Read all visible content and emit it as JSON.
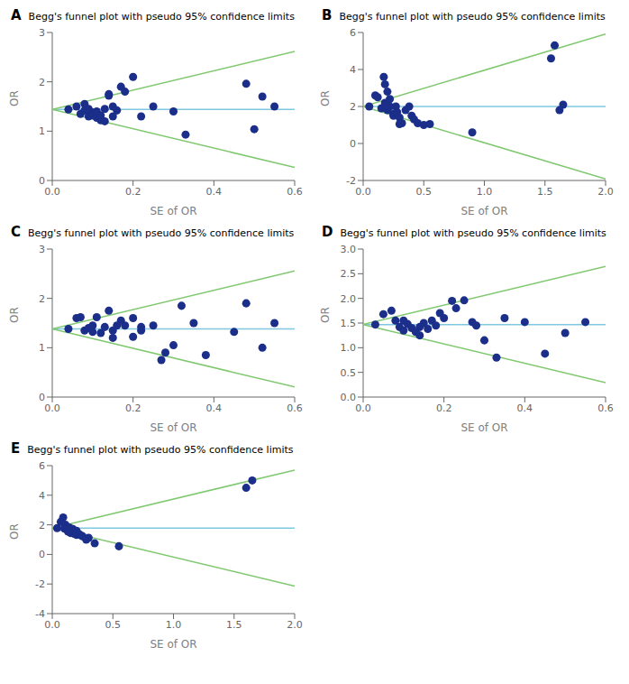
{
  "chart_data": [
    {
      "type": "scatter",
      "title": "Begg's funnel plot with pseudo 95% confidence limits",
      "annotations": [
        "A"
      ],
      "xlabel": "SE of OR",
      "ylabel": "OR",
      "xlim": [
        0,
        0.6
      ],
      "ylim": [
        0,
        3.0
      ],
      "xticks": [
        {
          "value": 0,
          "label": "0.0"
        },
        0.2,
        0.4,
        0.6
      ],
      "yticks": [
        0,
        1,
        2,
        3
      ],
      "series": [
        {
          "type": "line",
          "color": "#80c8e0",
          "x": [
            0,
            0.6
          ],
          "values": [
            1.44,
            1.44
          ]
        },
        {
          "type": "line",
          "color": "#80c870",
          "x": [
            0,
            0.6
          ],
          "values": [
            1.44,
            2.616
          ]
        },
        {
          "type": "line",
          "color": "#80c870",
          "x": [
            0,
            0.6
          ],
          "values": [
            1.44,
            0.264
          ]
        },
        {
          "type": "scatter",
          "color": "#1a2e8a",
          "x": [
            0.04,
            0.06,
            0.07,
            0.08,
            0.08,
            0.09,
            0.09,
            0.1,
            0.1,
            0.11,
            0.11,
            0.12,
            0.12,
            0.12,
            0.13,
            0.13,
            0.14,
            0.14,
            0.15,
            0.15,
            0.16,
            0.17,
            0.18,
            0.2,
            0.22,
            0.25,
            0.3,
            0.33,
            0.48,
            0.5,
            0.52,
            0.55
          ],
          "values": [
            1.44,
            1.5,
            1.35,
            1.42,
            1.55,
            1.3,
            1.45,
            1.38,
            1.32,
            1.27,
            1.4,
            1.22,
            1.25,
            1.32,
            1.2,
            1.45,
            1.75,
            1.72,
            1.3,
            1.5,
            1.42,
            1.9,
            1.8,
            2.1,
            1.3,
            1.5,
            1.4,
            0.93,
            1.96,
            1.04,
            1.7,
            1.5
          ]
        }
      ]
    },
    {
      "type": "scatter",
      "title": "Begg's funnel plot with pseudo 95% confidence limits",
      "annotations": [
        "B"
      ],
      "xlabel": "SE of OR",
      "ylabel": "OR",
      "xlim": [
        0,
        2.0
      ],
      "ylim": [
        -2,
        6
      ],
      "xticks": [
        {
          "value": 0,
          "label": "0.0"
        },
        0.5,
        {
          "value": 1,
          "label": "1.0"
        },
        1.5,
        {
          "value": 2,
          "label": "2.0"
        }
      ],
      "yticks": [
        -2,
        0,
        2,
        4,
        6
      ],
      "series": [
        {
          "type": "line",
          "color": "#80c8e0",
          "x": [
            0,
            2.0
          ],
          "values": [
            2.0,
            2.0
          ]
        },
        {
          "type": "line",
          "color": "#80c870",
          "x": [
            0,
            2.0
          ],
          "values": [
            2.0,
            5.92
          ]
        },
        {
          "type": "line",
          "color": "#80c870",
          "x": [
            0,
            2.0
          ],
          "values": [
            2.0,
            -1.92
          ]
        },
        {
          "type": "scatter",
          "color": "#1a2e8a",
          "x": [
            0.05,
            0.1,
            0.12,
            0.15,
            0.17,
            0.18,
            0.18,
            0.2,
            0.2,
            0.22,
            0.22,
            0.25,
            0.25,
            0.27,
            0.28,
            0.3,
            0.3,
            0.32,
            0.35,
            0.38,
            0.4,
            0.42,
            0.45,
            0.5,
            0.55,
            0.9,
            1.55,
            1.58,
            1.62,
            1.65
          ],
          "values": [
            2.0,
            2.6,
            2.5,
            1.9,
            3.6,
            3.2,
            2.2,
            1.8,
            2.8,
            2.4,
            2.0,
            1.6,
            1.5,
            2.0,
            1.7,
            1.4,
            1.05,
            1.1,
            1.8,
            2.0,
            1.5,
            1.3,
            1.1,
            1.0,
            1.05,
            0.6,
            4.6,
            5.3,
            1.8,
            2.1
          ]
        }
      ]
    },
    {
      "type": "scatter",
      "title": "Begg's funnel plot with pseudo 95% confidence limits",
      "annotations": [
        "C"
      ],
      "xlabel": "SE of OR",
      "ylabel": "OR",
      "xlim": [
        0,
        0.6
      ],
      "ylim": [
        0,
        3.0
      ],
      "xticks": [
        {
          "value": 0,
          "label": "0.0"
        },
        0.2,
        0.4,
        0.6
      ],
      "yticks": [
        0,
        1,
        2,
        3
      ],
      "series": [
        {
          "type": "line",
          "color": "#80c8e0",
          "x": [
            0,
            0.6
          ],
          "values": [
            1.38,
            1.38
          ]
        },
        {
          "type": "line",
          "color": "#80c870",
          "x": [
            0,
            0.6
          ],
          "values": [
            1.38,
            2.556
          ]
        },
        {
          "type": "line",
          "color": "#80c870",
          "x": [
            0,
            0.6
          ],
          "values": [
            1.38,
            0.204
          ]
        },
        {
          "type": "scatter",
          "color": "#1a2e8a",
          "x": [
            0.04,
            0.06,
            0.07,
            0.08,
            0.09,
            0.1,
            0.1,
            0.11,
            0.12,
            0.13,
            0.14,
            0.15,
            0.15,
            0.16,
            0.17,
            0.18,
            0.2,
            0.2,
            0.22,
            0.22,
            0.25,
            0.27,
            0.28,
            0.3,
            0.32,
            0.35,
            0.38,
            0.45,
            0.48,
            0.52,
            0.55
          ],
          "values": [
            1.38,
            1.6,
            1.62,
            1.35,
            1.4,
            1.32,
            1.45,
            1.62,
            1.3,
            1.42,
            1.75,
            1.35,
            1.2,
            1.45,
            1.55,
            1.45,
            1.6,
            1.22,
            1.35,
            1.42,
            1.45,
            0.75,
            0.9,
            1.05,
            1.85,
            1.5,
            0.85,
            1.32,
            1.9,
            1.0,
            1.5
          ]
        }
      ]
    },
    {
      "type": "scatter",
      "title": "Begg's funnel plot with pseudo 95% confidence limits",
      "annotations": [
        "D"
      ],
      "xlabel": "SE of OR",
      "ylabel": "OR",
      "xlim": [
        0,
        0.6
      ],
      "ylim": [
        0.0,
        3.0
      ],
      "xticks": [
        {
          "value": 0,
          "label": "0.0"
        },
        0.2,
        0.4,
        0.6
      ],
      "yticks": [
        {
          "value": 0,
          "label": "0.0"
        },
        0.5,
        {
          "value": 1,
          "label": "1.0"
        },
        1.5,
        {
          "value": 2,
          "label": "2.0"
        },
        2.5,
        {
          "value": 3,
          "label": "3.0"
        }
      ],
      "series": [
        {
          "type": "line",
          "color": "#80c8e0",
          "x": [
            0,
            0.6
          ],
          "values": [
            1.47,
            1.47
          ]
        },
        {
          "type": "line",
          "color": "#80c870",
          "x": [
            0,
            0.6
          ],
          "values": [
            1.47,
            2.646
          ]
        },
        {
          "type": "line",
          "color": "#80c870",
          "x": [
            0,
            0.6
          ],
          "values": [
            1.47,
            0.294
          ]
        },
        {
          "type": "scatter",
          "color": "#1a2e8a",
          "x": [
            0.03,
            0.05,
            0.07,
            0.08,
            0.09,
            0.1,
            0.1,
            0.11,
            0.12,
            0.13,
            0.14,
            0.14,
            0.15,
            0.16,
            0.17,
            0.18,
            0.19,
            0.2,
            0.22,
            0.23,
            0.25,
            0.27,
            0.28,
            0.3,
            0.33,
            0.35,
            0.4,
            0.45,
            0.5,
            0.55
          ],
          "values": [
            1.47,
            1.68,
            1.75,
            1.55,
            1.42,
            1.55,
            1.35,
            1.48,
            1.4,
            1.32,
            1.42,
            1.25,
            1.5,
            1.38,
            1.55,
            1.45,
            1.7,
            1.6,
            1.95,
            1.8,
            1.96,
            1.52,
            1.45,
            1.15,
            0.8,
            1.6,
            1.52,
            0.88,
            1.3,
            1.52
          ]
        }
      ]
    },
    {
      "type": "scatter",
      "title": "Begg's funnel plot with pseudo 95% confidence limits",
      "annotations": [
        "E"
      ],
      "xlabel": "SE of OR",
      "ylabel": "OR",
      "xlim": [
        0,
        2.0
      ],
      "ylim": [
        -4,
        6
      ],
      "xticks": [
        {
          "value": 0,
          "label": "0.0"
        },
        0.5,
        {
          "value": 1,
          "label": "1.0"
        },
        1.5,
        {
          "value": 2,
          "label": "2.0"
        }
      ],
      "yticks": [
        -4,
        -2,
        0,
        2,
        4,
        6
      ],
      "series": [
        {
          "type": "line",
          "color": "#80c8e0",
          "x": [
            0,
            2.0
          ],
          "values": [
            1.78,
            1.78
          ]
        },
        {
          "type": "line",
          "color": "#80c870",
          "x": [
            0,
            2.0
          ],
          "values": [
            1.78,
            5.7
          ]
        },
        {
          "type": "line",
          "color": "#80c870",
          "x": [
            0,
            2.0
          ],
          "values": [
            1.78,
            -2.14
          ]
        },
        {
          "type": "scatter",
          "color": "#1a2e8a",
          "x": [
            0.04,
            0.07,
            0.09,
            0.1,
            0.11,
            0.12,
            0.13,
            0.14,
            0.15,
            0.16,
            0.17,
            0.18,
            0.18,
            0.2,
            0.2,
            0.22,
            0.24,
            0.25,
            0.28,
            0.3,
            0.35,
            0.55,
            1.6,
            1.65
          ],
          "values": [
            1.78,
            2.2,
            2.5,
            1.75,
            2.0,
            1.68,
            1.55,
            1.82,
            1.45,
            1.65,
            1.72,
            1.4,
            1.55,
            1.32,
            1.6,
            1.38,
            1.28,
            1.22,
            1.0,
            1.12,
            0.75,
            0.55,
            4.5,
            5.0
          ]
        }
      ]
    }
  ]
}
